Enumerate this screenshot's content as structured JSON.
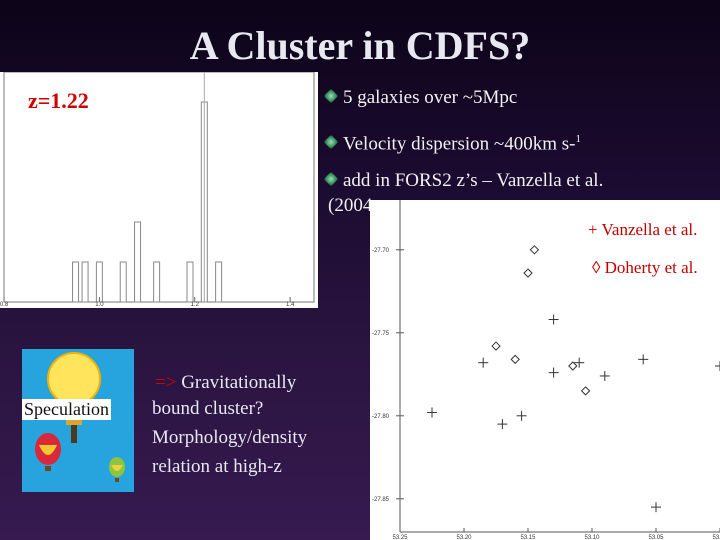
{
  "title": "A Cluster in CDFS?",
  "histogram": {
    "label": "z=1.22",
    "x_ticks": [
      "0.8",
      "1.0",
      "1.2",
      "1.4"
    ]
  },
  "bullets": [
    {
      "text": "5 galaxies over ~5Mpc"
    },
    {
      "text": "Velocity dispersion ~400km s-",
      "sup": "1"
    },
    {
      "text": "add in FORS2 z’s – Vanzella et al.",
      "cont": "(2004"
    }
  ],
  "scatter": {
    "legend_plus": "+ Vanzella et al.",
    "legend_diamond": "◊ Doherty et al.",
    "y_ticks": [
      "-27.70",
      "-27.75",
      "-27.80",
      "-27.85"
    ],
    "x_ticks": [
      "53.25",
      "53.20",
      "53.15",
      "53.10",
      "53.05",
      "53.00"
    ]
  },
  "speculation": {
    "label": "Speculation",
    "arrow": "=>",
    "line1": "Gravitationally",
    "line2": "bound cluster?",
    "line3": "Morphology/density",
    "line4": "relation at high-z"
  },
  "chart_data": [
    {
      "type": "bar",
      "title": "",
      "xlabel": "",
      "ylabel": "",
      "x": [
        0.95,
        0.97,
        1.0,
        1.05,
        1.08,
        1.12,
        1.19,
        1.22,
        1.25
      ],
      "values": [
        1,
        1,
        1,
        1,
        2,
        1,
        1,
        5,
        1
      ],
      "xlim": [
        0.8,
        1.45
      ]
    },
    {
      "type": "scatter",
      "title": "",
      "xlabel": "",
      "ylabel": "",
      "xlim": [
        53.25,
        53.0
      ],
      "ylim": [
        -27.67,
        -27.87
      ],
      "series": [
        {
          "name": "Vanzella et al.",
          "marker": "+",
          "x": [
            53.13,
            53.155,
            53.17,
            53.185,
            53.225,
            53.13,
            53.09,
            53.06,
            53.05,
            53.11,
            53.0
          ],
          "y": [
            -27.742,
            -27.8,
            -27.805,
            -27.768,
            -27.798,
            -27.774,
            -27.776,
            -27.766,
            -27.855,
            -27.768,
            -27.77
          ]
        },
        {
          "name": "Doherty et al.",
          "marker": "diamond",
          "x": [
            53.145,
            53.15,
            53.175,
            53.16,
            53.115,
            53.105
          ],
          "y": [
            -27.7,
            -27.714,
            -27.758,
            -27.766,
            -27.77,
            -27.785
          ]
        }
      ]
    }
  ]
}
